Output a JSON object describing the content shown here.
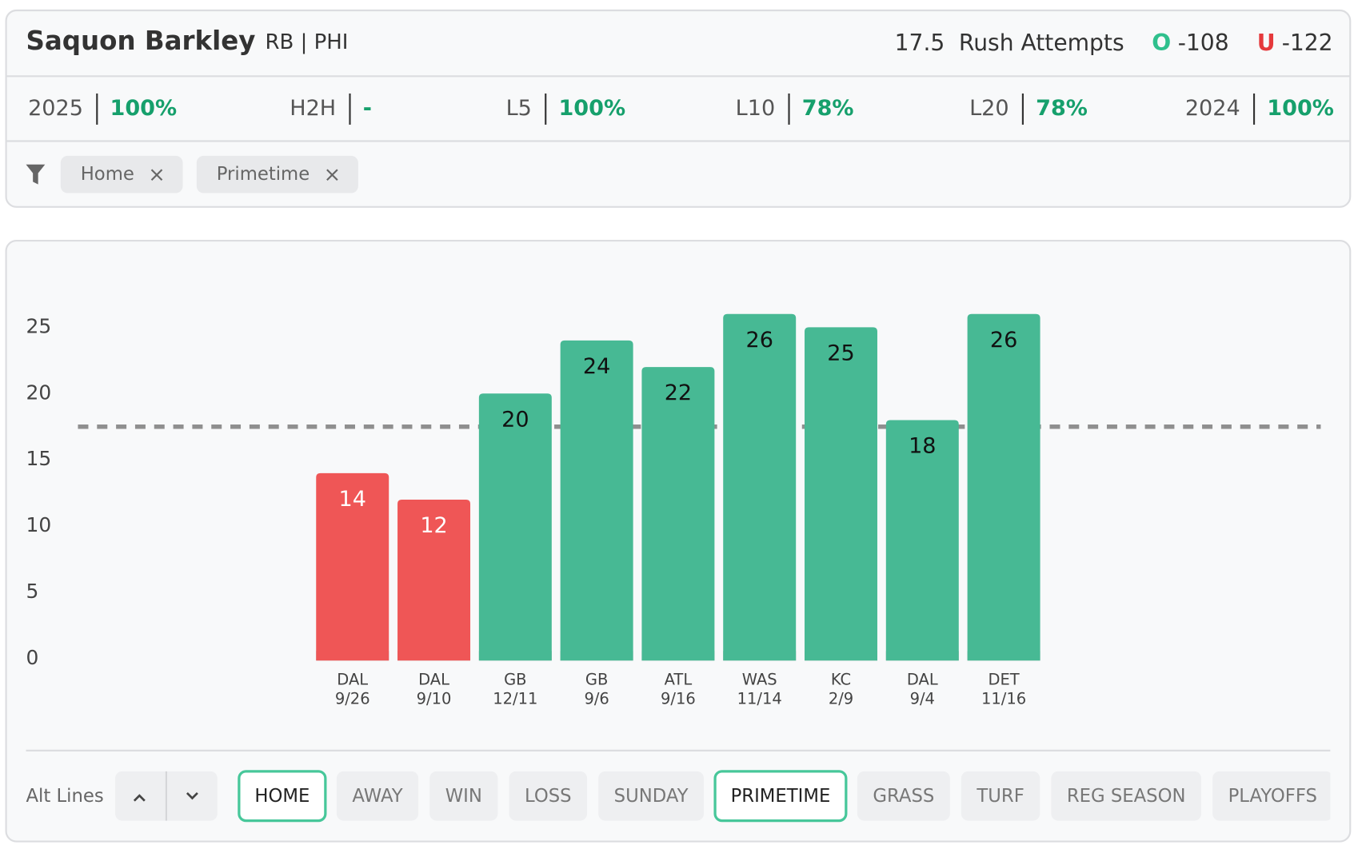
{
  "header": {
    "player": "Saquon Barkley",
    "team": "RB | PHI",
    "line": 17.5,
    "market": "Rush Attempts",
    "over_label": "O",
    "over_odds": "-108",
    "under_label": "U",
    "under_odds": "-122"
  },
  "stats": [
    {
      "label": "2025",
      "value": "100%"
    },
    {
      "label": "H2H",
      "value": "-"
    },
    {
      "label": "L5",
      "value": "100%"
    },
    {
      "label": "L10",
      "value": "78%"
    },
    {
      "label": "L20",
      "value": "78%"
    },
    {
      "label": "2024",
      "value": "100%"
    }
  ],
  "filters": [
    "Home",
    "Primetime"
  ],
  "chart_data": {
    "type": "bar",
    "categories": [
      "DAL",
      "DAL",
      "GB",
      "GB",
      "ATL",
      "WAS",
      "KC",
      "DAL",
      "DET"
    ],
    "dates": [
      "9/26",
      "9/10",
      "12/11",
      "9/6",
      "9/16",
      "11/14",
      "2/9",
      "9/4",
      "11/16"
    ],
    "values": [
      14,
      12,
      20,
      24,
      22,
      26,
      25,
      18,
      26
    ],
    "over_color": "#47b994",
    "under_color": "#ef5656",
    "ylim": [
      0,
      25
    ],
    "yticks": [
      0,
      5,
      10,
      15,
      20,
      25
    ],
    "grid": false
  },
  "alt_lines": "Alt Lines",
  "buttons": [
    {
      "label": "HOME",
      "active": true
    },
    {
      "label": "AWAY",
      "active": false
    },
    {
      "label": "WIN",
      "active": false
    },
    {
      "label": "LOSS",
      "active": false
    },
    {
      "label": "SUNDAY",
      "active": false
    },
    {
      "label": "PRIMETIME",
      "active": true
    },
    {
      "label": "GRASS",
      "active": false
    },
    {
      "label": "TURF",
      "active": false
    },
    {
      "label": "REG SEASON",
      "active": false
    },
    {
      "label": "PLAYOFFS",
      "active": false
    }
  ]
}
